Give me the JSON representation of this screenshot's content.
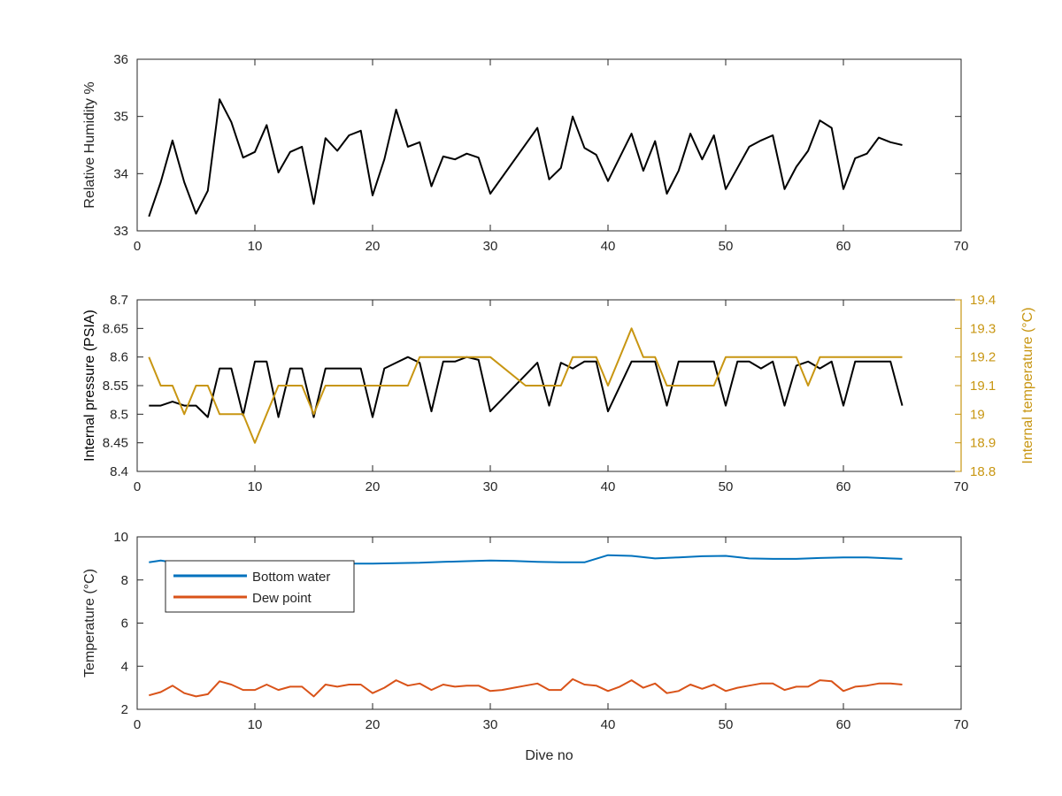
{
  "chart_data": [
    {
      "type": "line",
      "xlabel": "",
      "ylabel": "Relative Humidity %",
      "xlim": [
        0,
        70
      ],
      "ylim": [
        33,
        36
      ],
      "xticks": [
        "0",
        "10",
        "20",
        "30",
        "40",
        "50",
        "60",
        "70"
      ],
      "yticks": [
        "33",
        "34",
        "35",
        "36"
      ],
      "series": [
        {
          "color": "#000000",
          "x": [
            1,
            2,
            3,
            4,
            5,
            6,
            7,
            8,
            9,
            10,
            11,
            12,
            13,
            14,
            15,
            16,
            17,
            18,
            19,
            20,
            21,
            22,
            23,
            24,
            25,
            26,
            27,
            28,
            29,
            30,
            34,
            35,
            36,
            37,
            38,
            39,
            40,
            42,
            43,
            44,
            45,
            46,
            47,
            48,
            49,
            50,
            52,
            53,
            54,
            55,
            56,
            57,
            58,
            59,
            60,
            61,
            62,
            63,
            64,
            65
          ],
          "y": [
            33.25,
            33.85,
            34.58,
            33.85,
            33.3,
            33.7,
            35.3,
            34.9,
            34.28,
            34.38,
            34.85,
            34.02,
            34.38,
            34.47,
            33.47,
            34.62,
            34.4,
            34.67,
            34.75,
            33.62,
            34.25,
            35.12,
            34.47,
            34.55,
            33.78,
            34.3,
            34.25,
            34.35,
            34.28,
            33.65,
            34.8,
            33.9,
            34.1,
            35.0,
            34.45,
            34.33,
            33.87,
            34.7,
            34.05,
            34.57,
            33.65,
            34.05,
            34.7,
            34.25,
            34.67,
            33.73,
            34.47,
            34.58,
            34.67,
            33.73,
            34.12,
            34.4,
            34.93,
            34.8,
            33.73,
            34.27,
            34.35,
            34.63,
            34.55,
            34.5
          ]
        }
      ]
    },
    {
      "type": "line",
      "xlabel": "",
      "ylabel": "Internal pressure (PSIA)",
      "ylabel_right": "Internal temperature (°C)",
      "xlim": [
        0,
        70
      ],
      "ylim": [
        8.4,
        8.7
      ],
      "ylim_right": [
        18.8,
        19.4
      ],
      "xticks": [
        "0",
        "10",
        "20",
        "30",
        "40",
        "50",
        "60",
        "70"
      ],
      "yticks": [
        "8.4",
        "8.45",
        "8.5",
        "8.55",
        "8.6",
        "8.65",
        "8.7"
      ],
      "yticks_right": [
        "18.8",
        "18.9",
        "19",
        "19.1",
        "19.2",
        "19.3",
        "19.4"
      ],
      "series": [
        {
          "axis": "left",
          "color": "#000000",
          "x": [
            1,
            2,
            3,
            4,
            5,
            6,
            7,
            8,
            9,
            10,
            11,
            12,
            13,
            14,
            15,
            16,
            17,
            18,
            19,
            20,
            21,
            22,
            23,
            24,
            25,
            26,
            27,
            28,
            29,
            30,
            34,
            35,
            36,
            37,
            38,
            39,
            40,
            42,
            43,
            44,
            45,
            46,
            47,
            48,
            49,
            50,
            51,
            52,
            53,
            54,
            55,
            56,
            57,
            58,
            59,
            60,
            61,
            62,
            63,
            64,
            65
          ],
          "y": [
            8.515,
            8.515,
            8.522,
            8.515,
            8.515,
            8.495,
            8.58,
            8.58,
            8.498,
            8.592,
            8.592,
            8.495,
            8.58,
            8.58,
            8.495,
            8.58,
            8.58,
            8.58,
            8.58,
            8.495,
            8.58,
            8.59,
            8.6,
            8.59,
            8.505,
            8.592,
            8.592,
            8.6,
            8.595,
            8.505,
            8.59,
            8.515,
            8.59,
            8.58,
            8.592,
            8.592,
            8.505,
            8.592,
            8.592,
            8.592,
            8.515,
            8.592,
            8.592,
            8.592,
            8.592,
            8.515,
            8.592,
            8.592,
            8.58,
            8.592,
            8.515,
            8.585,
            8.592,
            8.58,
            8.592,
            8.515,
            8.592,
            8.592,
            8.592,
            8.592,
            8.515
          ]
        },
        {
          "axis": "right",
          "color": "#C89612",
          "x": [
            1,
            2,
            3,
            4,
            5,
            6,
            7,
            8,
            9,
            10,
            11,
            12,
            13,
            14,
            15,
            16,
            17,
            18,
            19,
            20,
            21,
            22,
            23,
            24,
            25,
            26,
            27,
            28,
            29,
            30,
            33,
            34,
            35,
            36,
            37,
            38,
            39,
            40,
            41,
            42,
            43,
            44,
            45,
            46,
            47,
            48,
            49,
            50,
            51,
            52,
            53,
            54,
            55,
            56,
            57,
            58,
            59,
            60,
            61,
            62,
            63,
            64,
            65
          ],
          "y": [
            19.2,
            19.1,
            19.1,
            19.0,
            19.1,
            19.1,
            19.0,
            19.0,
            19.0,
            18.9,
            19.0,
            19.1,
            19.1,
            19.1,
            19.0,
            19.1,
            19.1,
            19.1,
            19.1,
            19.1,
            19.1,
            19.1,
            19.1,
            19.2,
            19.2,
            19.2,
            19.2,
            19.2,
            19.2,
            19.2,
            19.1,
            19.1,
            19.1,
            19.1,
            19.2,
            19.2,
            19.2,
            19.1,
            19.2,
            19.3,
            19.2,
            19.2,
            19.1,
            19.1,
            19.1,
            19.1,
            19.1,
            19.2,
            19.2,
            19.2,
            19.2,
            19.2,
            19.2,
            19.2,
            19.1,
            19.2,
            19.2,
            19.2,
            19.2,
            19.2,
            19.2,
            19.2,
            19.2
          ]
        }
      ]
    },
    {
      "type": "line",
      "xlabel": "Dive no",
      "ylabel": "Temperature (°C)",
      "xlim": [
        0,
        70
      ],
      "ylim": [
        2,
        10
      ],
      "xticks": [
        "0",
        "10",
        "20",
        "30",
        "40",
        "50",
        "60",
        "70"
      ],
      "yticks": [
        "2",
        "4",
        "6",
        "8",
        "10"
      ],
      "legend_position": "top-left",
      "series": [
        {
          "name": "Bottom water",
          "color": "#0072BD",
          "x": [
            1,
            2,
            3,
            4,
            5,
            6,
            7,
            8,
            9,
            10,
            12,
            14,
            16,
            18,
            20,
            22,
            24,
            26,
            28,
            30,
            32,
            34,
            36,
            38,
            40,
            42,
            44,
            46,
            48,
            50,
            52,
            54,
            56,
            58,
            60,
            62,
            64,
            65
          ],
          "y": [
            8.82,
            8.9,
            8.82,
            8.78,
            8.78,
            8.76,
            8.76,
            8.78,
            8.76,
            8.76,
            8.76,
            8.76,
            8.76,
            8.76,
            8.76,
            8.78,
            8.8,
            8.84,
            8.87,
            8.9,
            8.88,
            8.84,
            8.82,
            8.82,
            9.15,
            9.12,
            9.0,
            9.05,
            9.1,
            9.12,
            9.0,
            8.98,
            8.98,
            9.02,
            9.05,
            9.05,
            9.0,
            8.98
          ]
        },
        {
          "name": "Dew point",
          "color": "#D95319",
          "x": [
            1,
            2,
            3,
            4,
            5,
            6,
            7,
            8,
            9,
            10,
            11,
            12,
            13,
            14,
            15,
            16,
            17,
            18,
            19,
            20,
            21,
            22,
            23,
            24,
            25,
            26,
            27,
            28,
            29,
            30,
            31,
            32,
            33,
            34,
            35,
            36,
            37,
            38,
            39,
            40,
            41,
            42,
            43,
            44,
            45,
            46,
            47,
            48,
            49,
            50,
            51,
            52,
            53,
            54,
            55,
            56,
            57,
            58,
            59,
            60,
            61,
            62,
            63,
            64,
            65
          ],
          "y": [
            2.65,
            2.8,
            3.1,
            2.75,
            2.6,
            2.7,
            3.3,
            3.15,
            2.9,
            2.9,
            3.15,
            2.9,
            3.05,
            3.05,
            2.6,
            3.15,
            3.05,
            3.15,
            3.15,
            2.75,
            3.0,
            3.35,
            3.1,
            3.2,
            2.9,
            3.15,
            3.05,
            3.1,
            3.1,
            2.85,
            2.9,
            3.0,
            3.1,
            3.2,
            2.9,
            2.9,
            3.4,
            3.15,
            3.1,
            2.85,
            3.05,
            3.35,
            3.0,
            3.2,
            2.75,
            2.85,
            3.15,
            2.95,
            3.15,
            2.85,
            3.0,
            3.1,
            3.2,
            3.2,
            2.9,
            3.05,
            3.05,
            3.35,
            3.3,
            2.85,
            3.05,
            3.1,
            3.2,
            3.2,
            3.15
          ]
        }
      ]
    }
  ]
}
